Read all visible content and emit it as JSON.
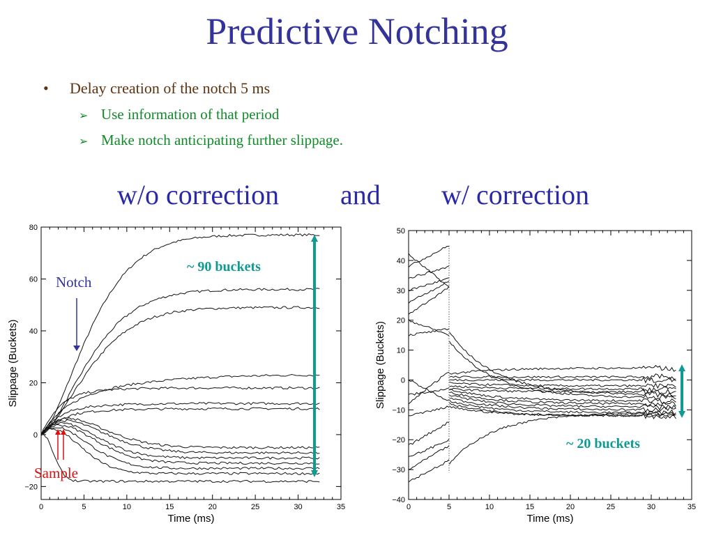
{
  "slide": {
    "title": "Predictive Notching",
    "bullet": {
      "marker": "•",
      "text": "Delay creation of the notch 5 ms"
    },
    "sub_bullets": [
      {
        "marker": "➢",
        "text": "Use information of that period"
      },
      {
        "marker": "➢",
        "text": "Make notch anticipating further slippage."
      }
    ],
    "headings": {
      "left": "w/o correction",
      "middle": "and",
      "right": "w/ correction"
    }
  },
  "colors": {
    "title": "#333399",
    "bullet": "#5c3310",
    "sub_bullet": "#118a2a",
    "heading": "#2a2aa8",
    "teal_arrow": "#0f9a94",
    "notch": "#333399",
    "sample": "#dd1111"
  },
  "annotations": {
    "left_span": "~ 90 buckets",
    "notch": "Notch",
    "sample": "Sample",
    "right_span": "~ 20 buckets"
  },
  "chart_data": [
    {
      "type": "line",
      "title": "",
      "xlabel": "Time (ms)",
      "ylabel": "Slippage (Buckets)",
      "xlim": [
        0,
        35
      ],
      "ylim": [
        -25,
        80
      ],
      "xticks": [
        "0",
        "5",
        "10",
        "15",
        "20",
        "25",
        "30",
        "35"
      ],
      "yticks": [
        "−20",
        "0",
        "20",
        "40",
        "60",
        "80"
      ],
      "grid": false,
      "curves": [
        {
          "peak": 0,
          "tp": 0,
          "final": 77
        },
        {
          "peak": 0,
          "tp": 0,
          "final": 56
        },
        {
          "peak": 0,
          "tp": 0,
          "final": 49
        },
        {
          "peak": 18,
          "tp": 8,
          "final": 23
        },
        {
          "peak": 17,
          "tp": 5,
          "final": 18
        },
        {
          "peak": 11,
          "tp": 5,
          "final": 12
        },
        {
          "peak": 9,
          "tp": 5,
          "final": 10
        },
        {
          "peak": 10,
          "tp": 4.5,
          "final": -5
        },
        {
          "peak": 9,
          "tp": 4.5,
          "final": -7
        },
        {
          "peak": 8,
          "tp": 4,
          "final": -9
        },
        {
          "peak": 7,
          "tp": 4,
          "final": -11
        },
        {
          "peak": 6,
          "tp": 3.5,
          "final": -13
        },
        {
          "peak": 5,
          "tp": 3,
          "final": -15
        },
        {
          "peak": 1,
          "tp": 1,
          "final": -18
        }
      ]
    },
    {
      "type": "line",
      "title": "",
      "xlabel": "Time (ms)",
      "ylabel": "Slippage (Buckets)",
      "xlim": [
        0,
        35
      ],
      "ylim": [
        -40,
        50
      ],
      "xticks": [
        "0",
        "5",
        "10",
        "15",
        "20",
        "25",
        "30",
        "35"
      ],
      "yticks": [
        "−40",
        "−30",
        "−20",
        "−10",
        "0",
        "10",
        "20",
        "30",
        "40",
        "50"
      ],
      "grid": false,
      "curves": [
        {
          "a": 42,
          "b": 31,
          "c": 2,
          "final": 4
        },
        {
          "a": 38,
          "b": 45,
          "c": 1,
          "final": 1
        },
        {
          "a": 34,
          "b": 38,
          "c": 0,
          "final": 0
        },
        {
          "a": 30,
          "b": 34,
          "c": -1,
          "final": -2
        },
        {
          "a": 26,
          "b": 33,
          "c": -2,
          "final": -3
        },
        {
          "a": 22,
          "b": 31,
          "c": -3,
          "final": -4
        },
        {
          "a": 20,
          "b": 15,
          "c": 16,
          "final": -5
        },
        {
          "a": 15,
          "b": 17,
          "c": 13,
          "final": -6
        },
        {
          "a": 0,
          "b": -7,
          "c": -3,
          "final": -7
        },
        {
          "a": -5,
          "b": -3,
          "c": -4,
          "final": -8
        },
        {
          "a": -8,
          "b": 3,
          "c": -5,
          "final": -9
        },
        {
          "a": -12,
          "b": -9,
          "c": -6,
          "final": -10
        },
        {
          "a": -22,
          "b": -14,
          "c": -7,
          "final": -11
        },
        {
          "a": -26,
          "b": -20,
          "c": -8,
          "final": -12
        },
        {
          "a": -30,
          "b": -22,
          "c": -9,
          "final": -12
        },
        {
          "a": -34,
          "b": -27,
          "c": -28,
          "final": -11
        }
      ]
    }
  ]
}
